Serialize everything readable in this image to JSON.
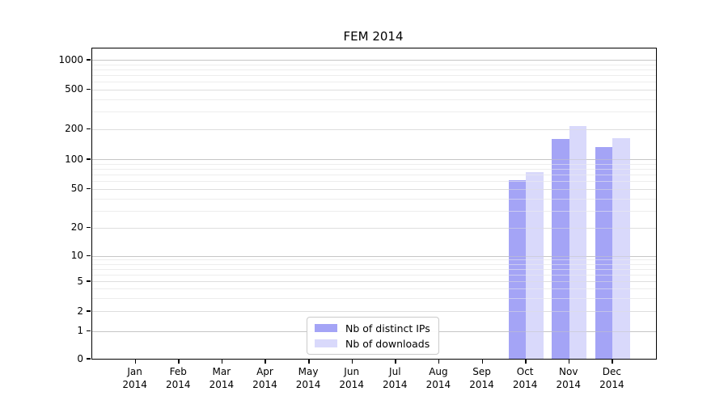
{
  "title": "FEM 2014",
  "chart_data": {
    "type": "bar",
    "title": "FEM 2014",
    "categories": [
      "Jan",
      "Feb",
      "Mar",
      "Apr",
      "May",
      "Jun",
      "Jul",
      "Aug",
      "Sep",
      "Oct",
      "Nov",
      "Dec"
    ],
    "year": "2014",
    "series": [
      {
        "name": "Nb of distinct IPs",
        "color": "#a4a4f6",
        "values": [
          0,
          0,
          0,
          0,
          0,
          0,
          0,
          0,
          0,
          62,
          160,
          133
        ]
      },
      {
        "name": "Nb of downloads",
        "color": "#d9d9fb",
        "values": [
          0,
          0,
          0,
          0,
          0,
          0,
          0,
          0,
          0,
          74,
          215,
          162
        ]
      }
    ],
    "xlabel": "",
    "ylabel": "",
    "y_scale": "symlog",
    "y_ticks": [
      0,
      1,
      2,
      5,
      10,
      20,
      50,
      100,
      200,
      500,
      1000
    ],
    "ylim": [
      0,
      1300
    ],
    "grid": "horizontal, major and minor log gridlines",
    "legend_position": "lower center"
  },
  "colors": {
    "bar_distinct_ips": "#a4a4f6",
    "bar_downloads": "#d9d9fb",
    "axis": "#000000",
    "major_gridline": "#c6c6c6",
    "minor_gridline": "#ededed",
    "background": "#ffffff"
  }
}
